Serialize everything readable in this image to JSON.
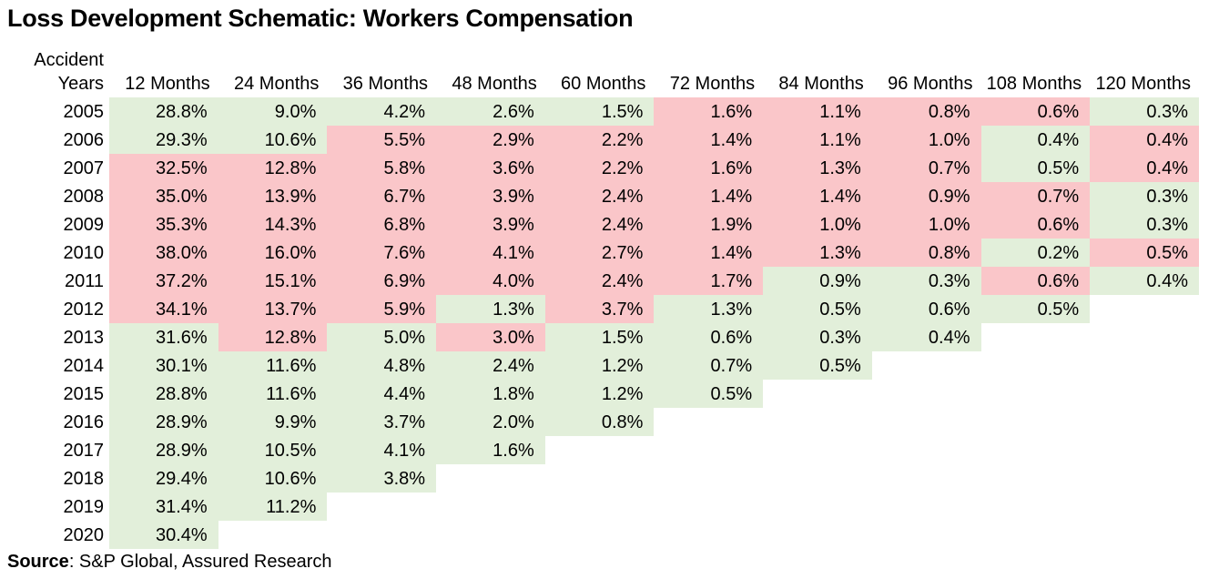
{
  "title": "Loss Development Schematic: Workers Compensation",
  "source": {
    "label": "Source",
    "text": ": S&P Global, Assured Research"
  },
  "colors": {
    "favorable_green": "#E2EFDA",
    "adverse_pink": "#FAC6C9",
    "text": "#000000",
    "background": "#FFFFFF"
  },
  "chart_data": {
    "type": "heatmap",
    "title": "Loss Development Schematic: Workers Compensation",
    "row_header": [
      "Accident",
      "Years"
    ],
    "columns": [
      "12 Months",
      "24 Months",
      "36 Months",
      "48 Months",
      "60 Months",
      "72 Months",
      "84 Months",
      "96 Months",
      "108 Months",
      "120 Months"
    ],
    "color_map": {
      "g": "#E2EFDA",
      "r": "#FAC6C9"
    },
    "color_legend": {
      "g": "favorable/green",
      "r": "adverse/pink"
    },
    "rows": [
      {
        "year": "2005",
        "values": [
          "28.8%",
          "9.0%",
          "4.2%",
          "2.6%",
          "1.5%",
          "1.6%",
          "1.1%",
          "0.8%",
          "0.6%",
          "0.3%"
        ],
        "colors": [
          "g",
          "g",
          "g",
          "g",
          "g",
          "r",
          "r",
          "r",
          "r",
          "g"
        ]
      },
      {
        "year": "2006",
        "values": [
          "29.3%",
          "10.6%",
          "5.5%",
          "2.9%",
          "2.2%",
          "1.4%",
          "1.1%",
          "1.0%",
          "0.4%",
          "0.4%"
        ],
        "colors": [
          "g",
          "g",
          "r",
          "r",
          "r",
          "r",
          "r",
          "r",
          "g",
          "r"
        ]
      },
      {
        "year": "2007",
        "values": [
          "32.5%",
          "12.8%",
          "5.8%",
          "3.6%",
          "2.2%",
          "1.6%",
          "1.3%",
          "0.7%",
          "0.5%",
          "0.4%"
        ],
        "colors": [
          "r",
          "r",
          "r",
          "r",
          "r",
          "r",
          "r",
          "r",
          "g",
          "r"
        ]
      },
      {
        "year": "2008",
        "values": [
          "35.0%",
          "13.9%",
          "6.7%",
          "3.9%",
          "2.4%",
          "1.4%",
          "1.4%",
          "0.9%",
          "0.7%",
          "0.3%"
        ],
        "colors": [
          "r",
          "r",
          "r",
          "r",
          "r",
          "r",
          "r",
          "r",
          "r",
          "g"
        ]
      },
      {
        "year": "2009",
        "values": [
          "35.3%",
          "14.3%",
          "6.8%",
          "3.9%",
          "2.4%",
          "1.9%",
          "1.0%",
          "1.0%",
          "0.6%",
          "0.3%"
        ],
        "colors": [
          "r",
          "r",
          "r",
          "r",
          "r",
          "r",
          "r",
          "r",
          "r",
          "g"
        ]
      },
      {
        "year": "2010",
        "values": [
          "38.0%",
          "16.0%",
          "7.6%",
          "4.1%",
          "2.7%",
          "1.4%",
          "1.3%",
          "0.8%",
          "0.2%",
          "0.5%"
        ],
        "colors": [
          "r",
          "r",
          "r",
          "r",
          "r",
          "r",
          "r",
          "r",
          "g",
          "r"
        ]
      },
      {
        "year": "2011",
        "values": [
          "37.2%",
          "15.1%",
          "6.9%",
          "4.0%",
          "2.4%",
          "1.7%",
          "0.9%",
          "0.3%",
          "0.6%",
          "0.4%"
        ],
        "colors": [
          "r",
          "r",
          "r",
          "r",
          "r",
          "r",
          "g",
          "g",
          "r",
          "g"
        ]
      },
      {
        "year": "2012",
        "values": [
          "34.1%",
          "13.7%",
          "5.9%",
          "1.3%",
          "3.7%",
          "1.3%",
          "0.5%",
          "0.6%",
          "0.5%"
        ],
        "colors": [
          "r",
          "r",
          "r",
          "g",
          "r",
          "g",
          "g",
          "g",
          "g"
        ]
      },
      {
        "year": "2013",
        "values": [
          "31.6%",
          "12.8%",
          "5.0%",
          "3.0%",
          "1.5%",
          "0.6%",
          "0.3%",
          "0.4%"
        ],
        "colors": [
          "g",
          "r",
          "g",
          "r",
          "g",
          "g",
          "g",
          "g"
        ]
      },
      {
        "year": "2014",
        "values": [
          "30.1%",
          "11.6%",
          "4.8%",
          "2.4%",
          "1.2%",
          "0.7%",
          "0.5%"
        ],
        "colors": [
          "g",
          "g",
          "g",
          "g",
          "g",
          "g",
          "g"
        ]
      },
      {
        "year": "2015",
        "values": [
          "28.8%",
          "11.6%",
          "4.4%",
          "1.8%",
          "1.2%",
          "0.5%"
        ],
        "colors": [
          "g",
          "g",
          "g",
          "g",
          "g",
          "g"
        ]
      },
      {
        "year": "2016",
        "values": [
          "28.9%",
          "9.9%",
          "3.7%",
          "2.0%",
          "0.8%"
        ],
        "colors": [
          "g",
          "g",
          "g",
          "g",
          "g"
        ]
      },
      {
        "year": "2017",
        "values": [
          "28.9%",
          "10.5%",
          "4.1%",
          "1.6%"
        ],
        "colors": [
          "g",
          "g",
          "g",
          "g"
        ]
      },
      {
        "year": "2018",
        "values": [
          "29.4%",
          "10.6%",
          "3.8%"
        ],
        "colors": [
          "g",
          "g",
          "g"
        ]
      },
      {
        "year": "2019",
        "values": [
          "31.4%",
          "11.2%"
        ],
        "colors": [
          "g",
          "g"
        ]
      },
      {
        "year": "2020",
        "values": [
          "30.4%"
        ],
        "colors": [
          "g"
        ]
      }
    ]
  }
}
